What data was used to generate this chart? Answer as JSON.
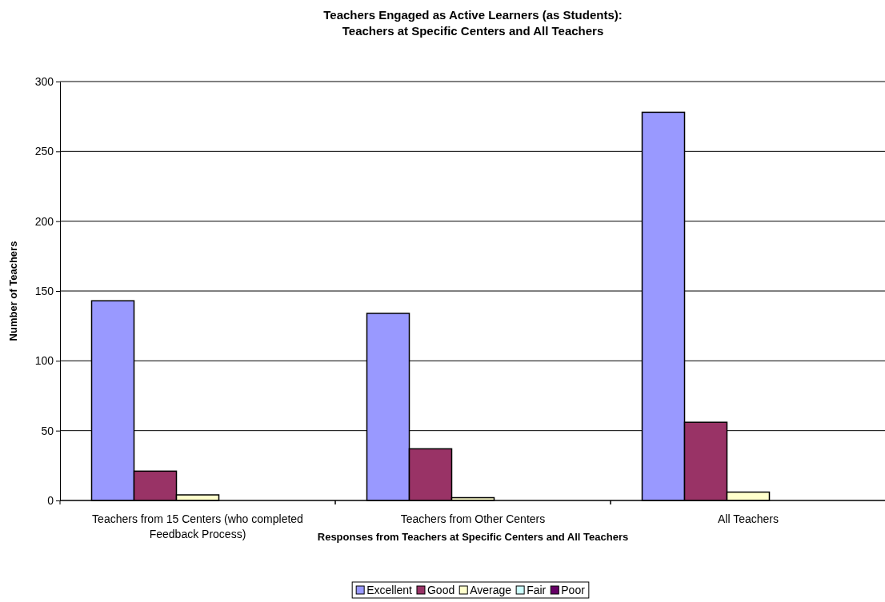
{
  "chart_data": {
    "type": "bar",
    "title": "Teachers Engaged as Active Learners (as Students):\nTeachers at Specific Centers and All Teachers",
    "xlabel": "Responses from Teachers at Specific Centers and All Teachers",
    "ylabel": "Number of Teachers",
    "categories": [
      "Teachers from 15 Centers (who completed\nFeedback Process)",
      "Teachers from Other Centers",
      "All Teachers"
    ],
    "series": [
      {
        "name": "Excellent",
        "color": "#9999ff",
        "values": [
          143,
          134,
          278
        ]
      },
      {
        "name": "Good",
        "color": "#993366",
        "values": [
          21,
          37,
          56
        ]
      },
      {
        "name": "Average",
        "color": "#ffffcc",
        "values": [
          4,
          2,
          6
        ]
      },
      {
        "name": "Fair",
        "color": "#ccffff",
        "values": [
          0,
          0,
          0
        ]
      },
      {
        "name": "Poor",
        "color": "#660066",
        "values": [
          0,
          0,
          0
        ]
      }
    ],
    "ylim": [
      0,
      300
    ],
    "yticks": [
      0,
      50,
      100,
      150,
      200,
      250,
      300
    ],
    "grid": "y",
    "legend": "bottom"
  }
}
